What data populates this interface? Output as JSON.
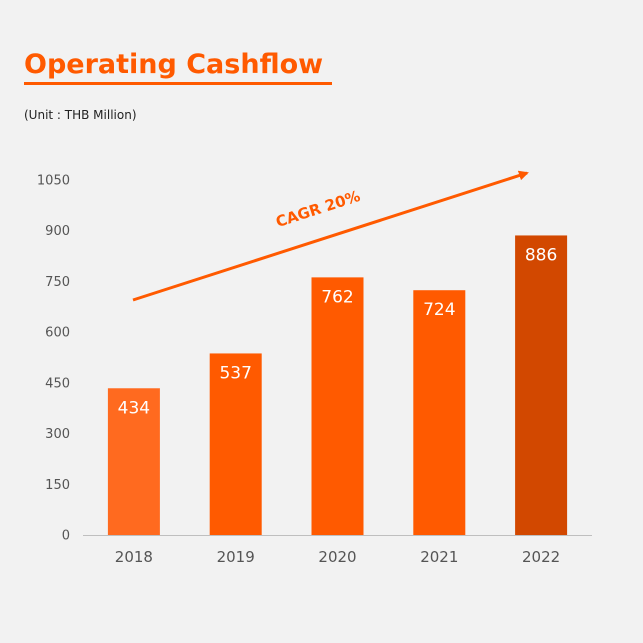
{
  "page": {
    "title": "Operating Cashflow",
    "subtitle": "(Unit : THB Million)"
  },
  "colors": {
    "title": "#ff5a00",
    "bars": [
      "#ff6a1f",
      "#ff5a00",
      "#ff5a00",
      "#ff5a00",
      "#d24800"
    ],
    "arrow": "#ff5a00",
    "axis": "#bfbfbf"
  },
  "chart_data": {
    "type": "bar",
    "categories": [
      "2018",
      "2019",
      "2020",
      "2021",
      "2022"
    ],
    "values": [
      434,
      537,
      762,
      724,
      886
    ],
    "ylim": [
      0,
      1050
    ],
    "yticks": [
      0,
      150,
      300,
      450,
      600,
      750,
      900,
      1050
    ],
    "grid": false,
    "legend": "none",
    "annotation": {
      "text": "CAGR 20%"
    }
  }
}
